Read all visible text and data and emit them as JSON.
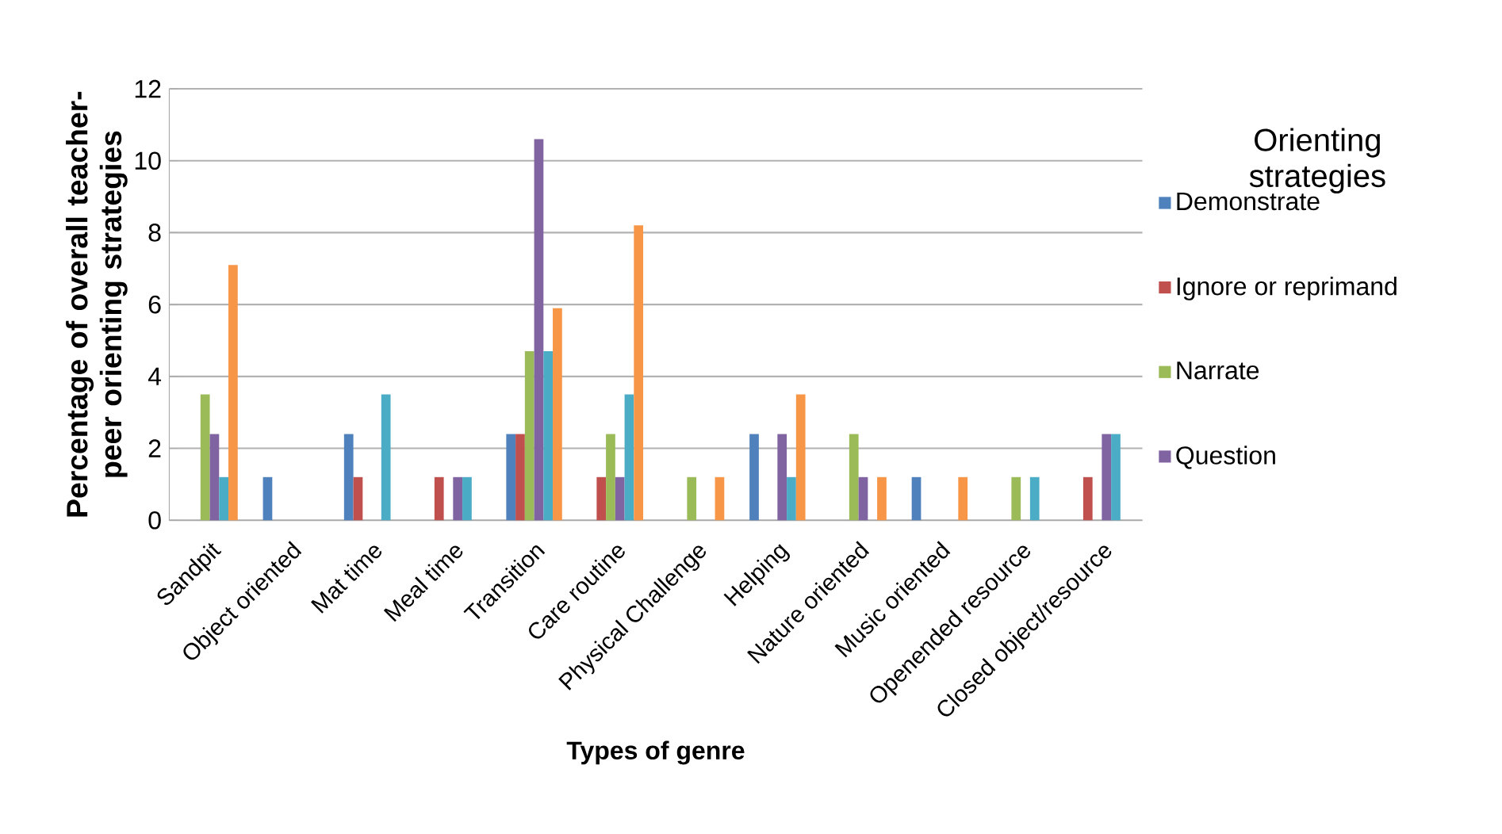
{
  "chart_data": {
    "type": "bar",
    "xlabel": "Types of genre",
    "ylabel": "Percentage of overall teacher-peer orienting strategies",
    "legend_title": "Orienting strategies",
    "categories": [
      "Sandpit",
      "Object oriented",
      "Mat time",
      "Meal time",
      "Transition",
      "Care routine",
      "Physical Challenge",
      "Helping",
      "Nature oriented",
      "Music oriented",
      "Openended resource",
      "Closed object/resource"
    ],
    "series": [
      {
        "name": "Demonstrate",
        "color": "#4f81bd",
        "values": [
          0,
          1.2,
          2.4,
          0,
          2.4,
          0,
          0,
          2.4,
          0,
          1.2,
          0,
          0
        ]
      },
      {
        "name": "Ignore or reprimand",
        "color": "#c0504d",
        "values": [
          0,
          0,
          1.2,
          1.2,
          2.4,
          1.2,
          0,
          0,
          0,
          0,
          0,
          1.2
        ]
      },
      {
        "name": "Narrate",
        "color": "#9bbb59",
        "values": [
          3.5,
          0,
          0,
          0,
          4.7,
          2.4,
          1.2,
          0,
          2.4,
          0,
          1.2,
          0
        ]
      },
      {
        "name": "Question",
        "color": "#8064a2",
        "values": [
          2.4,
          0,
          0,
          1.2,
          10.6,
          1.2,
          0,
          2.4,
          1.2,
          0,
          0,
          2.4
        ]
      },
      {
        "color": "#4bacc6",
        "values": [
          1.2,
          0,
          3.5,
          1.2,
          4.7,
          3.5,
          0,
          1.2,
          0,
          0,
          1.2,
          2.4
        ]
      },
      {
        "color": "#f79646",
        "values": [
          7.1,
          0,
          0,
          0,
          5.9,
          8.2,
          1.2,
          3.5,
          1.2,
          1.2,
          0,
          0
        ]
      }
    ],
    "ylim": [
      0,
      12
    ],
    "yticks": [
      0,
      2,
      4,
      6,
      8,
      10,
      12
    ],
    "grid": "y",
    "legend": "right"
  }
}
